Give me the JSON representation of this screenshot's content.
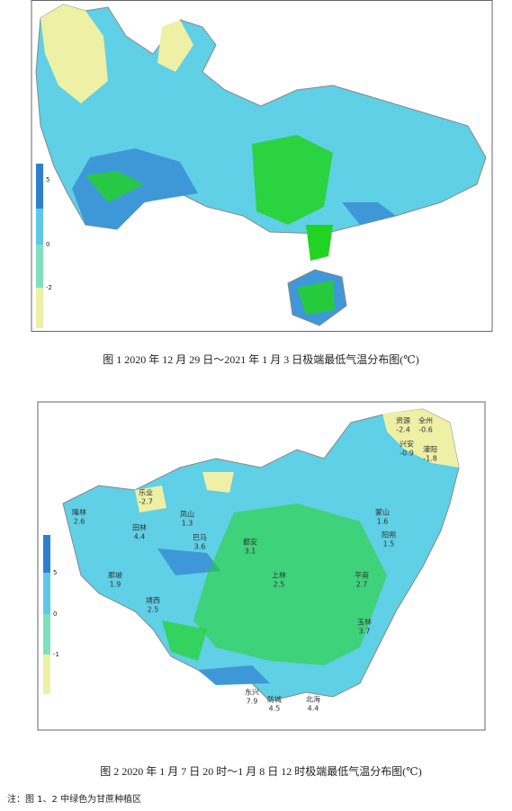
{
  "figure1": {
    "caption": "图 1   2020 年 12 月 29 日～2021 年 1 月 3 日极端最低气温分布图(℃)",
    "legend": [
      "5",
      "0",
      "-2"
    ]
  },
  "figure2": {
    "caption": "图 2  2020 年 1 月 7 日 20 时～1 月 8 日 12 时极端最低气温分布图(℃)",
    "legend": [
      "5",
      "0",
      "-1"
    ],
    "stations": [
      {
        "name": "资源",
        "value": -2.4
      },
      {
        "name": "全州",
        "value": -0.6
      },
      {
        "name": "兴安",
        "value": -0.9
      },
      {
        "name": "灌阳",
        "value": -1.8
      },
      {
        "name": "乐业",
        "value": -2.7
      },
      {
        "name": "隆林",
        "value": 2.6
      },
      {
        "name": "田林",
        "value": 4.4
      },
      {
        "name": "凤山",
        "value": 1.3
      },
      {
        "name": "巴马",
        "value": 3.6
      },
      {
        "name": "那坡",
        "value": 1.9
      },
      {
        "name": "靖西",
        "value": 2.5
      },
      {
        "name": "都安",
        "value": 3.1
      },
      {
        "name": "上林",
        "value": 2.5
      },
      {
        "name": "平南",
        "value": 2.7
      },
      {
        "name": "玉林",
        "value": 3.7
      },
      {
        "name": "东兴",
        "value": 7.9
      },
      {
        "name": "防城",
        "value": 4.5
      },
      {
        "name": "北海",
        "value": 4.4
      },
      {
        "name": "蒙山",
        "value": 1.6
      },
      {
        "name": "阳朔",
        "value": 1.5
      }
    ]
  },
  "note": "注：图 1、2 中绿色为甘蔗种植区"
}
